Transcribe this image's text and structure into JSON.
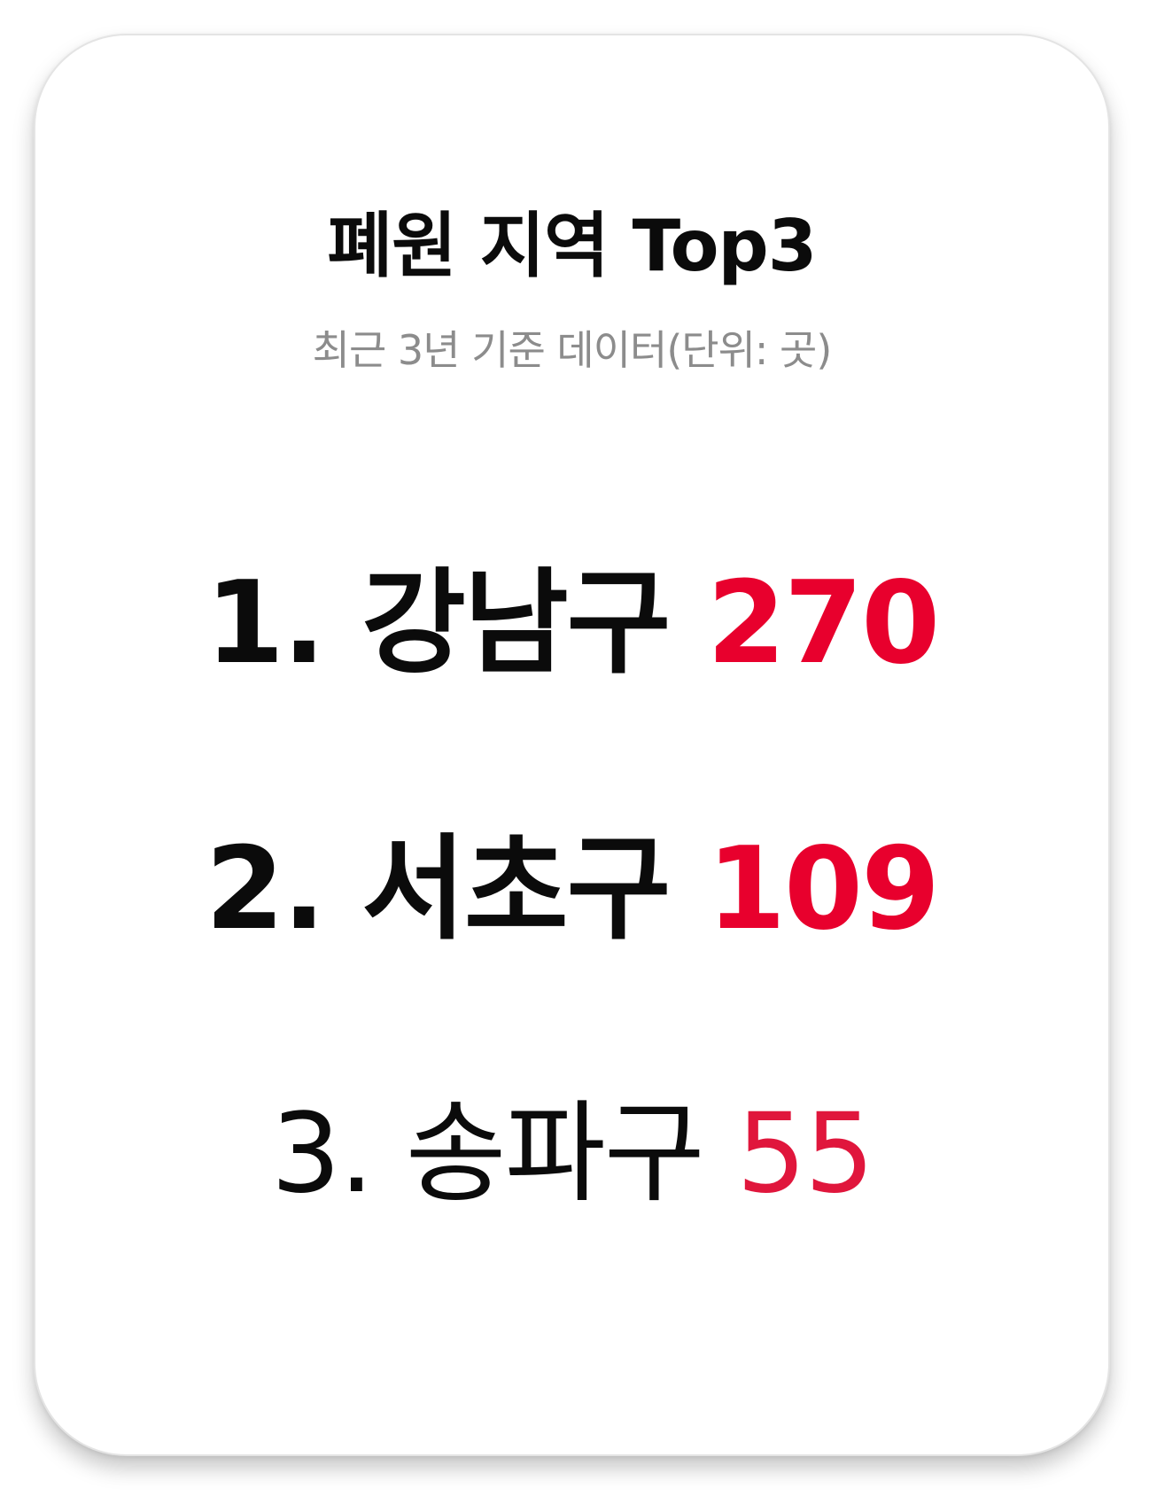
{
  "card": {
    "title": "폐원 지역 Top3",
    "subtitle": "최근 3년 기준 데이터(단위: 곳)"
  },
  "ranking": [
    {
      "prefix": "1. 강남구",
      "value": "270"
    },
    {
      "prefix": "2. 서초구",
      "value": "109"
    },
    {
      "prefix": "3. 송파구",
      "value": "55"
    }
  ],
  "colors": {
    "accent": "#e8002d",
    "title": "#0b0b0b",
    "subtitle": "#8c8c8c"
  }
}
